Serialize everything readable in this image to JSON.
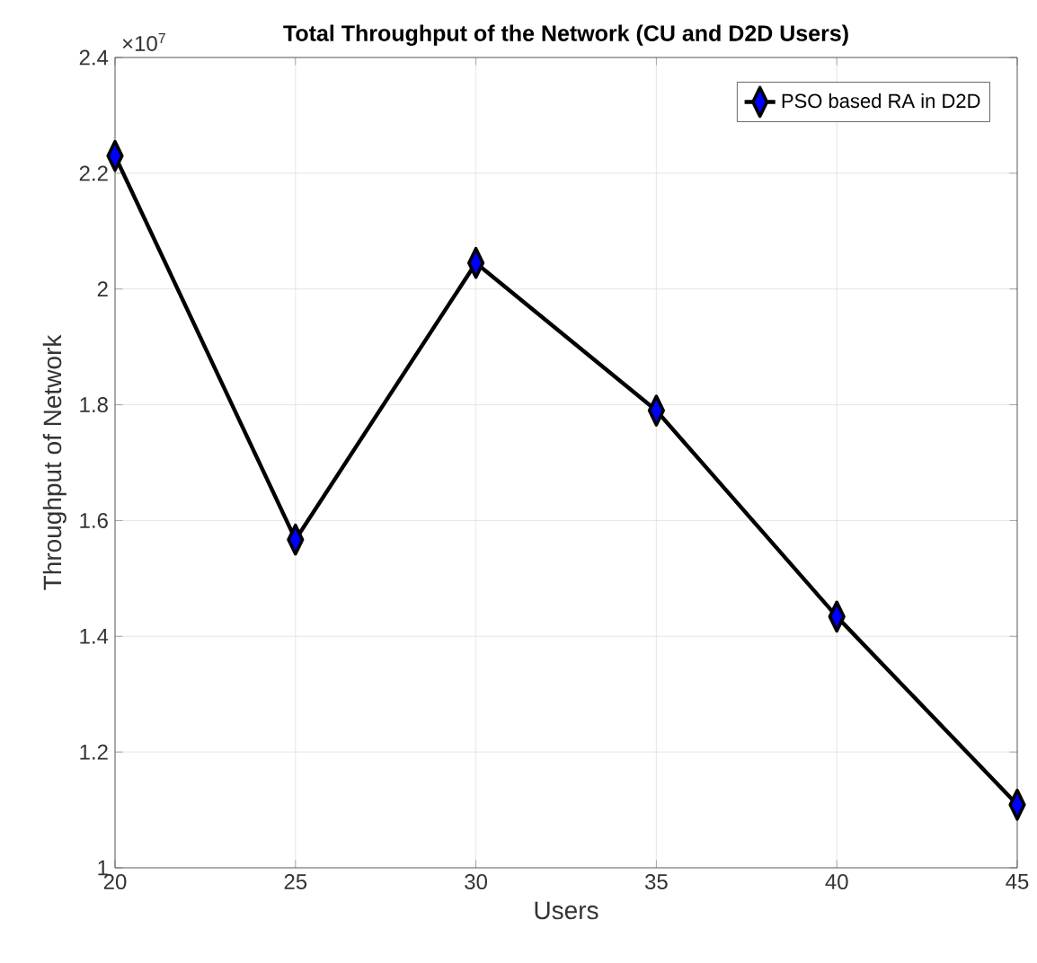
{
  "chart_data": {
    "type": "line",
    "title": "Total Throughput of the Network (CU and D2D Users)",
    "xlabel": "Users",
    "ylabel": "Throughput of Network",
    "x": [
      20,
      25,
      30,
      35,
      40,
      45
    ],
    "series": [
      {
        "name": "PSO based RA in D2D",
        "color": "#000000",
        "values": [
          2.23,
          1.567,
          2.045,
          1.79,
          1.434,
          1.109
        ]
      }
    ],
    "xlim": [
      20,
      45
    ],
    "xticks": [
      20,
      25,
      30,
      35,
      40,
      45
    ],
    "ylim": [
      1,
      2.4
    ],
    "yticks": [
      1,
      1.2,
      1.4,
      1.6,
      1.8,
      2,
      2.2,
      2.4
    ],
    "annotations": [
      "×10$^{7}$"
    ],
    "grid": true,
    "legend": "top right",
    "marker": "diamond",
    "line_style": "solid"
  }
}
